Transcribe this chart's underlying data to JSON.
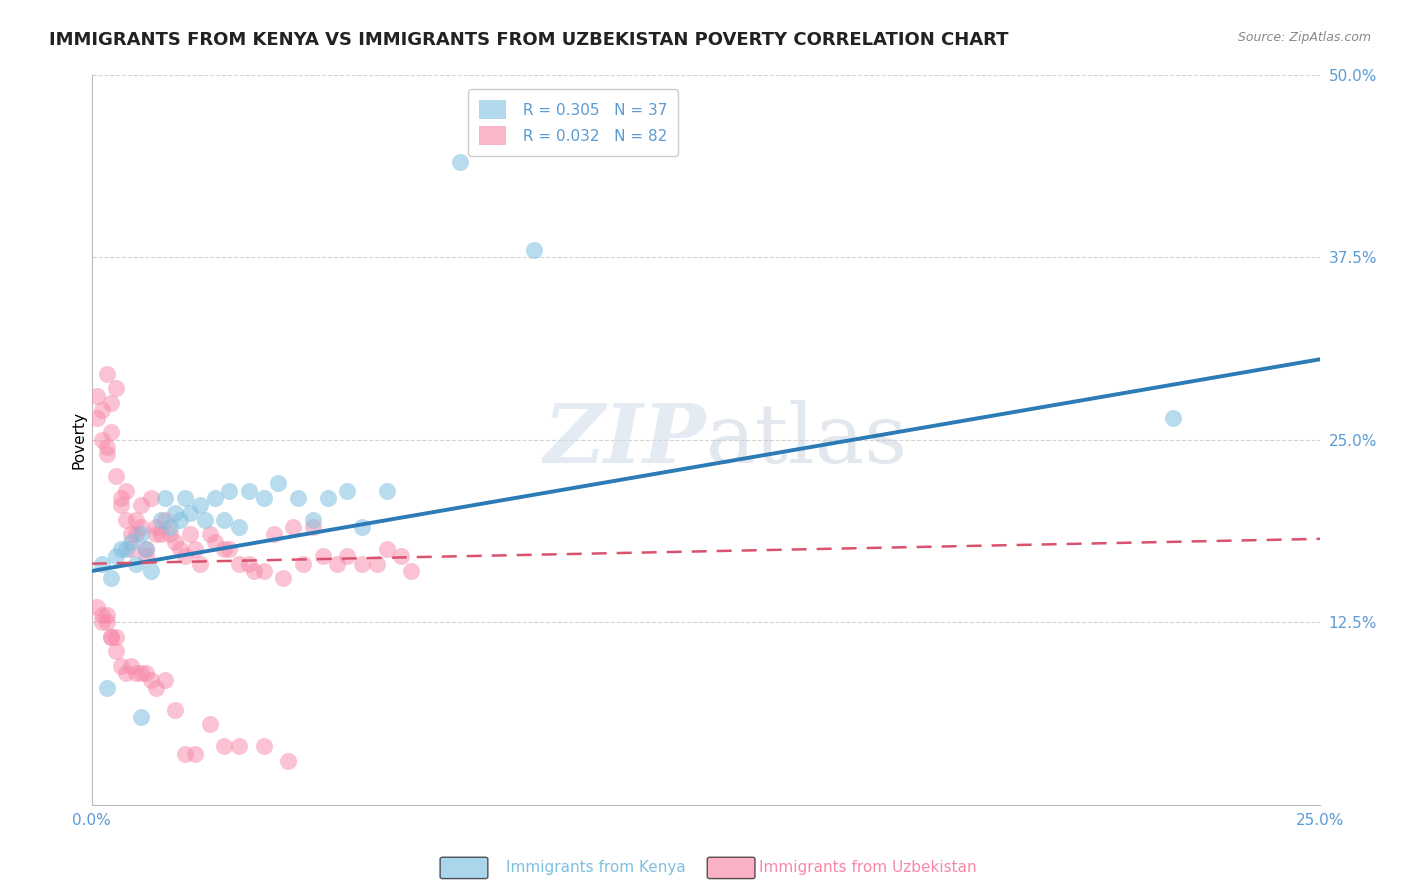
{
  "title": "IMMIGRANTS FROM KENYA VS IMMIGRANTS FROM UZBEKISTAN POVERTY CORRELATION CHART",
  "source": "Source: ZipAtlas.com",
  "ylabel_label": "Poverty",
  "xlim": [
    0.0,
    0.25
  ],
  "ylim": [
    0.0,
    0.5
  ],
  "xticks": [
    0.0,
    0.05,
    0.1,
    0.15,
    0.2,
    0.25
  ],
  "yticks": [
    0.0,
    0.125,
    0.25,
    0.375,
    0.5
  ],
  "xtick_labels": [
    "0.0%",
    "",
    "",
    "",
    "",
    "25.0%"
  ],
  "ytick_labels": [
    "",
    "12.5%",
    "25.0%",
    "37.5%",
    "50.0%"
  ],
  "kenya_R": 0.305,
  "kenya_N": 37,
  "uzbek_R": 0.032,
  "uzbek_N": 82,
  "kenya_color": "#7fbfdf",
  "uzbek_color": "#f887a8",
  "kenya_line_color": "#2c7bb6",
  "uzbek_line_color": "#d9536e",
  "kenya_scatter_x": [
    0.002,
    0.004,
    0.005,
    0.006,
    0.007,
    0.008,
    0.009,
    0.01,
    0.011,
    0.012,
    0.014,
    0.015,
    0.016,
    0.017,
    0.018,
    0.019,
    0.02,
    0.022,
    0.023,
    0.025,
    0.027,
    0.028,
    0.03,
    0.032,
    0.035,
    0.038,
    0.042,
    0.045,
    0.048,
    0.052,
    0.055,
    0.06,
    0.09,
    0.22,
    0.003,
    0.01,
    0.075
  ],
  "kenya_scatter_y": [
    0.165,
    0.155,
    0.17,
    0.175,
    0.175,
    0.18,
    0.165,
    0.185,
    0.175,
    0.16,
    0.195,
    0.21,
    0.19,
    0.2,
    0.195,
    0.21,
    0.2,
    0.205,
    0.195,
    0.21,
    0.195,
    0.215,
    0.19,
    0.215,
    0.21,
    0.22,
    0.21,
    0.195,
    0.21,
    0.215,
    0.19,
    0.215,
    0.38,
    0.265,
    0.08,
    0.06,
    0.44
  ],
  "uzbek_scatter_x": [
    0.001,
    0.001,
    0.002,
    0.002,
    0.003,
    0.003,
    0.003,
    0.004,
    0.004,
    0.005,
    0.005,
    0.006,
    0.006,
    0.007,
    0.007,
    0.008,
    0.008,
    0.009,
    0.009,
    0.01,
    0.01,
    0.011,
    0.011,
    0.012,
    0.013,
    0.013,
    0.014,
    0.015,
    0.016,
    0.017,
    0.018,
    0.019,
    0.02,
    0.021,
    0.022,
    0.024,
    0.025,
    0.027,
    0.028,
    0.03,
    0.032,
    0.033,
    0.035,
    0.037,
    0.039,
    0.041,
    0.043,
    0.045,
    0.047,
    0.05,
    0.052,
    0.055,
    0.058,
    0.06,
    0.063,
    0.065,
    0.001,
    0.002,
    0.002,
    0.003,
    0.003,
    0.004,
    0.004,
    0.005,
    0.005,
    0.006,
    0.007,
    0.008,
    0.009,
    0.01,
    0.011,
    0.012,
    0.013,
    0.015,
    0.017,
    0.019,
    0.021,
    0.024,
    0.027,
    0.03,
    0.035,
    0.04
  ],
  "uzbek_scatter_y": [
    0.28,
    0.265,
    0.27,
    0.25,
    0.295,
    0.245,
    0.24,
    0.275,
    0.255,
    0.285,
    0.225,
    0.21,
    0.205,
    0.195,
    0.215,
    0.185,
    0.175,
    0.195,
    0.185,
    0.205,
    0.19,
    0.175,
    0.17,
    0.21,
    0.19,
    0.185,
    0.185,
    0.195,
    0.185,
    0.18,
    0.175,
    0.17,
    0.185,
    0.175,
    0.165,
    0.185,
    0.18,
    0.175,
    0.175,
    0.165,
    0.165,
    0.16,
    0.16,
    0.185,
    0.155,
    0.19,
    0.165,
    0.19,
    0.17,
    0.165,
    0.17,
    0.165,
    0.165,
    0.175,
    0.17,
    0.16,
    0.135,
    0.13,
    0.125,
    0.13,
    0.125,
    0.115,
    0.115,
    0.105,
    0.115,
    0.095,
    0.09,
    0.095,
    0.09,
    0.09,
    0.09,
    0.085,
    0.08,
    0.085,
    0.065,
    0.035,
    0.035,
    0.055,
    0.04,
    0.04,
    0.04,
    0.03
  ],
  "watermark_zip": "ZIP",
  "watermark_atlas": "atlas",
  "background_color": "#ffffff",
  "grid_color": "#d0d0d0",
  "axis_tick_color": "#5b9bd5",
  "title_fontsize": 13,
  "axis_label_fontsize": 11,
  "tick_fontsize": 11,
  "legend_fontsize": 11,
  "kenya_legend": "Immigrants from Kenya",
  "uzbek_legend": "Immigrants from Uzbekistan"
}
